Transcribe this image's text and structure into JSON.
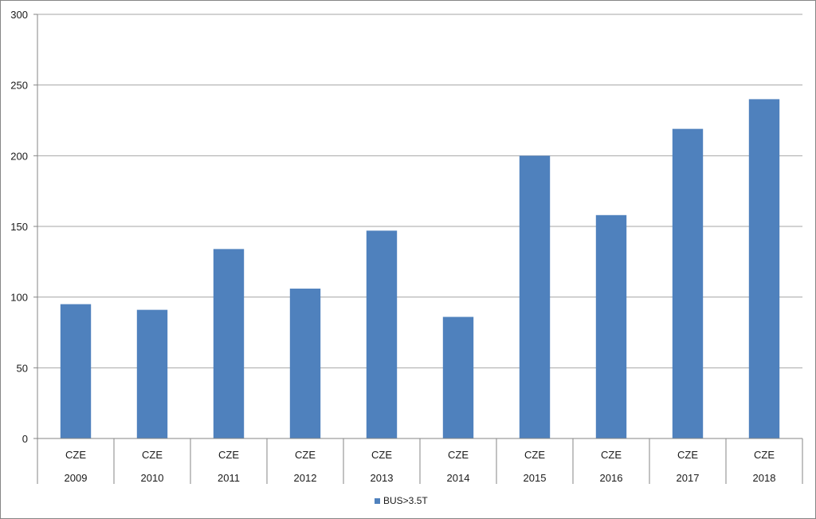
{
  "chart_data": {
    "type": "bar",
    "categories": [
      [
        "CZE",
        "2009"
      ],
      [
        "CZE",
        "2010"
      ],
      [
        "CZE",
        "2011"
      ],
      [
        "CZE",
        "2012"
      ],
      [
        "CZE",
        "2013"
      ],
      [
        "CZE",
        "2014"
      ],
      [
        "CZE",
        "2015"
      ],
      [
        "CZE",
        "2016"
      ],
      [
        "CZE",
        "2017"
      ],
      [
        "CZE",
        "2018"
      ]
    ],
    "series": [
      {
        "name": "BUS>3.5T",
        "color": "#4f81bd",
        "values": [
          95,
          91,
          134,
          106,
          147,
          86,
          200,
          158,
          219,
          240
        ]
      }
    ],
    "title": "",
    "xlabel": "",
    "ylabel": "",
    "ylim": [
      0,
      300
    ],
    "yticks": [
      "0",
      "50",
      "100",
      "150",
      "200",
      "250",
      "300"
    ],
    "grid": "horizontal",
    "legend_position": "bottom",
    "colors": {
      "gridline": "#a6a6a6",
      "axis": "#868686",
      "border": "#868686"
    }
  }
}
